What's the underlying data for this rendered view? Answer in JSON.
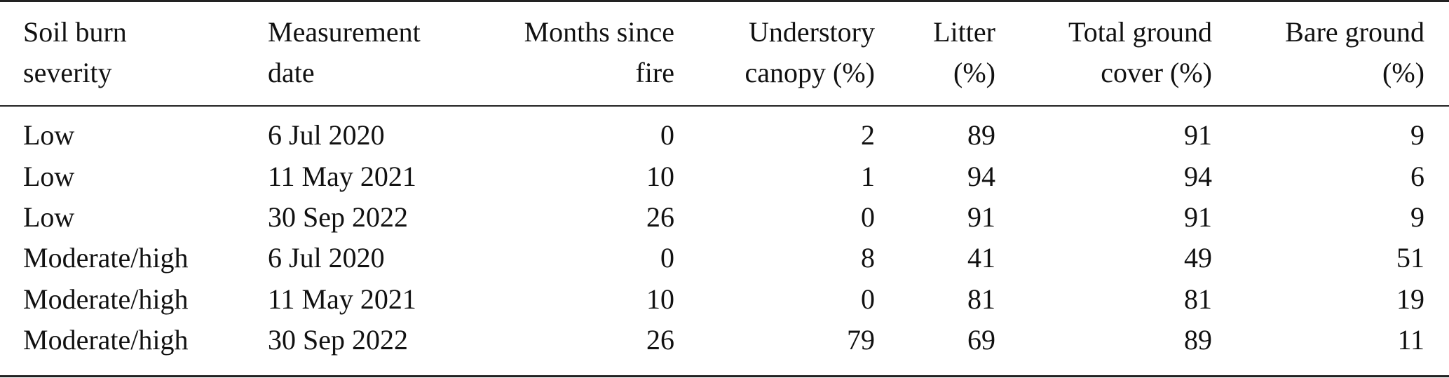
{
  "table": {
    "headers": [
      [
        "Soil burn",
        "severity"
      ],
      [
        "Measurement",
        "date"
      ],
      [
        "Months since",
        "fire"
      ],
      [
        "Understory",
        "canopy (%)"
      ],
      [
        "Litter",
        "(%)"
      ],
      [
        "Total ground",
        "cover (%)"
      ],
      [
        "Bare ground",
        "(%)"
      ]
    ],
    "rows": [
      [
        "Low",
        "6 Jul 2020",
        "0",
        "2",
        "89",
        "91",
        "9"
      ],
      [
        "Low",
        "11 May 2021",
        "10",
        "1",
        "94",
        "94",
        "6"
      ],
      [
        "Low",
        "30 Sep 2022",
        "26",
        "0",
        "91",
        "91",
        "9"
      ],
      [
        "Moderate/high",
        "6 Jul 2020",
        "0",
        "8",
        "41",
        "49",
        "51"
      ],
      [
        "Moderate/high",
        "11 May 2021",
        "10",
        "0",
        "81",
        "81",
        "19"
      ],
      [
        "Moderate/high",
        "30 Sep 2022",
        "26",
        "79",
        "69",
        "89",
        "11"
      ]
    ]
  }
}
